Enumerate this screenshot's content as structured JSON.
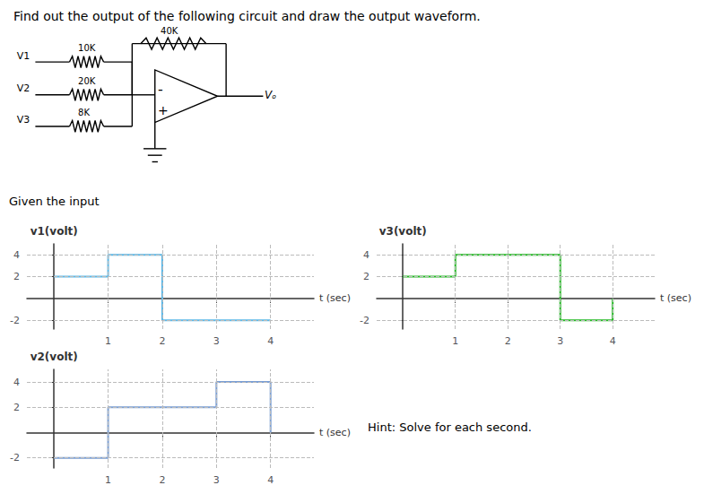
{
  "title": "Find out the output of the following circuit and draw the output waveform.",
  "annotations": [
    "Given the input",
    "Hint: Solve for each second."
  ],
  "circuit": {
    "inputs": [
      {
        "label": "V1",
        "resistor": "10K"
      },
      {
        "label": "V2",
        "resistor": "20K"
      },
      {
        "label": "V3",
        "resistor": "8K"
      }
    ],
    "feedback": "40K",
    "inverting": "-",
    "noninverting": "+",
    "output": "Vₒ"
  },
  "chart_data": [
    {
      "type": "step",
      "ylabel": "v1(volt)",
      "xlabel": "t (sec)",
      "x": [
        0,
        1,
        2,
        4
      ],
      "values": [
        2,
        4,
        -2,
        -2
      ],
      "color": "#5bb8e8",
      "xlim": [
        -0.5,
        4.8
      ],
      "ylim": [
        -2.8,
        5.0
      ],
      "xticks": [
        1,
        2,
        3,
        4
      ],
      "yticks": [
        4,
        2,
        -2
      ],
      "grid": true
    },
    {
      "type": "step",
      "ylabel": "v3(volt)",
      "xlabel": "t (sec)",
      "x": [
        0,
        1,
        3,
        4
      ],
      "values": [
        2,
        4,
        -2,
        0
      ],
      "color": "#22bb22",
      "xlim": [
        -0.5,
        4.8
      ],
      "ylim": [
        -2.8,
        5.0
      ],
      "xticks": [
        1,
        2,
        3,
        4
      ],
      "yticks": [
        4,
        2,
        -2
      ],
      "grid": true
    },
    {
      "type": "step",
      "ylabel": "v2(volt)",
      "xlabel": "t (sec)",
      "x": [
        0,
        1,
        3,
        4
      ],
      "values": [
        -2,
        2,
        4,
        0
      ],
      "color": "#7b9fd4",
      "xlim": [
        -0.5,
        4.8
      ],
      "ylim": [
        -2.8,
        5.0
      ],
      "xticks": [
        1,
        2,
        3,
        4
      ],
      "yticks": [
        4,
        2,
        -2
      ],
      "grid": true
    }
  ]
}
